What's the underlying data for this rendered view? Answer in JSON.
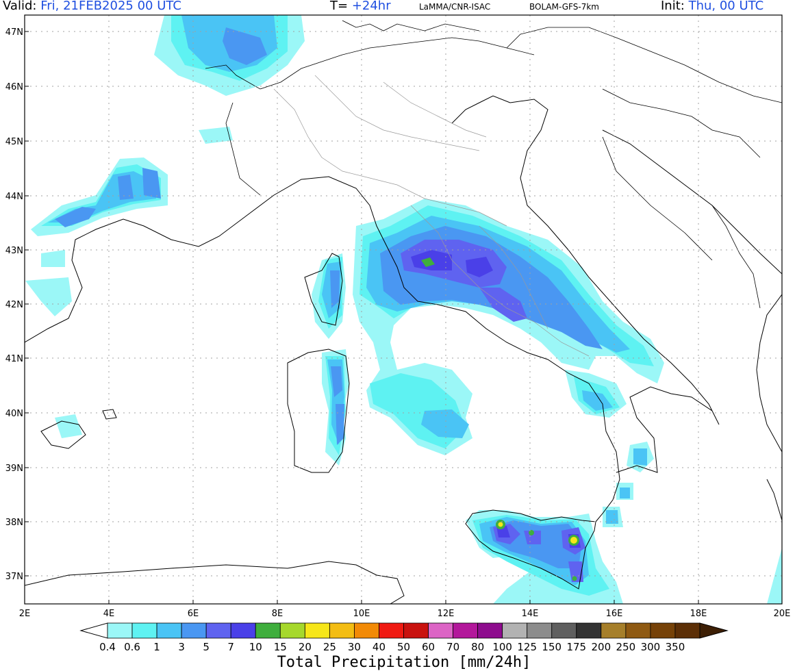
{
  "header": {
    "valid_label": "Valid:",
    "valid_value": "Fri, 21FEB2025   00 UTC",
    "t_label": "T=",
    "t_value": "+24hr",
    "source": "LaMMA/CNR-ISAC",
    "model": "BOLAM-GFS-7km",
    "init_label": "Init:",
    "init_value": "Thu, 00 UTC"
  },
  "map": {
    "lon_labels": [
      "2E",
      "4E",
      "6E",
      "8E",
      "10E",
      "12E",
      "14E",
      "16E",
      "18E",
      "20E"
    ],
    "lat_labels": [
      "47N",
      "46N",
      "45N",
      "44N",
      "43N",
      "42N",
      "41N",
      "40N",
      "39N",
      "38N",
      "37N"
    ]
  },
  "colorbar": {
    "title": "Total Precipitation [mm/24h]",
    "levels": [
      "0.4",
      "0.6",
      "1",
      "3",
      "5",
      "7",
      "10",
      "15",
      "20",
      "25",
      "30",
      "40",
      "50",
      "60",
      "70",
      "80",
      "100",
      "125",
      "150",
      "175",
      "200",
      "250",
      "300",
      "350"
    ],
    "colors": [
      "#9bf7f7",
      "#5ef2f2",
      "#4ac4f5",
      "#4a97f2",
      "#5f63f0",
      "#4a40e8",
      "#3fae3d",
      "#a6d82c",
      "#f6e619",
      "#f3bd13",
      "#f28a06",
      "#f01a12",
      "#c9120f",
      "#dc64c5",
      "#b3179b",
      "#8e0c8e",
      "#b2b2b2",
      "#8c8c8c",
      "#5f5f5f",
      "#333333",
      "#a67f2a",
      "#8f5a12",
      "#764208",
      "#5c2f06"
    ]
  }
}
